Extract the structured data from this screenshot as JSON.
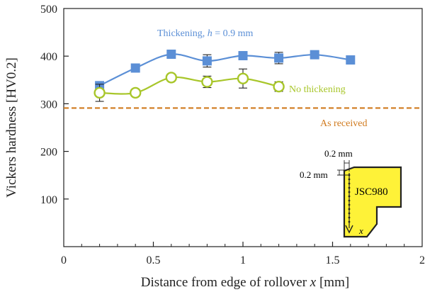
{
  "chart_data": {
    "type": "line",
    "title": "",
    "xlabel": "Distance from edge of rollover",
    "xlabel_var": "x",
    "xlabel_unit": "[mm]",
    "ylabel": "Vickers hardness [HV0.2]",
    "xlim": [
      0,
      2
    ],
    "ylim": [
      0,
      500
    ],
    "xticks": [
      0,
      0.5,
      1,
      1.5,
      2
    ],
    "xtick_labels": [
      "0",
      "0.5",
      "1",
      "1.5",
      "2"
    ],
    "yticks": [
      100,
      200,
      300,
      400,
      500
    ],
    "ytick_labels": [
      "100",
      "200",
      "300",
      "400",
      "500"
    ],
    "series": [
      {
        "name": "Thickening, h = 0.9 mm",
        "label_prefix": "Thickening, ",
        "label_var": "h",
        "label_suffix": " = 0.9 mm",
        "color": "#5b8fd6",
        "marker": "square",
        "x": [
          0.2,
          0.4,
          0.6,
          0.8,
          1.0,
          1.2,
          1.4,
          1.6
        ],
        "y": [
          338,
          375,
          404,
          390,
          401,
          396,
          403,
          392
        ],
        "err": [
          0,
          0,
          0,
          13,
          0,
          12,
          0,
          0
        ]
      },
      {
        "name": "No thickening",
        "color": "#a8c62a",
        "marker": "circle-open",
        "x": [
          0.2,
          0.4,
          0.6,
          0.8,
          1.0,
          1.2
        ],
        "y": [
          323,
          323,
          355,
          346,
          353,
          336
        ],
        "err": [
          18,
          0,
          0,
          12,
          20,
          10
        ]
      }
    ],
    "reference_line": {
      "name": "As received",
      "y": 291,
      "color": "#d07a1e",
      "style": "dashed"
    },
    "inset": {
      "material": "JSC980",
      "dim_horizontal": "0.2 mm",
      "dim_vertical": "0.2 mm",
      "axis_var": "x",
      "fill": "#fef238"
    }
  }
}
